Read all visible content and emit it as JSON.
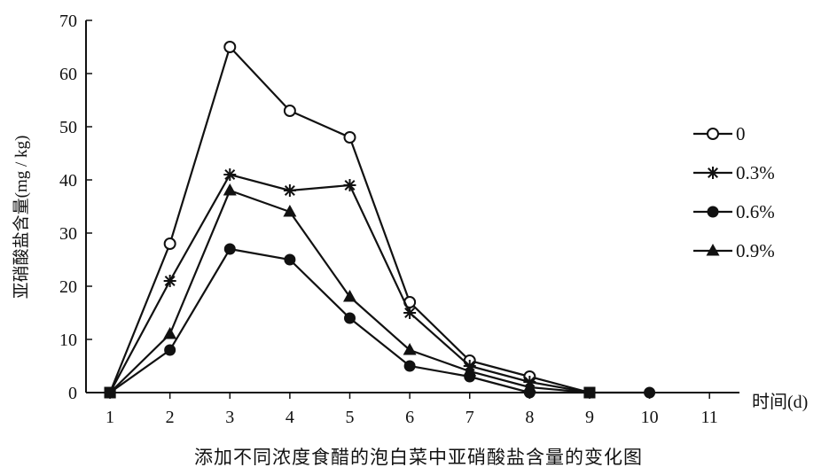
{
  "chart_data": {
    "type": "line",
    "title": "",
    "caption": "添加不同浓度食醋的泡白菜中亚硝酸盐含量的变化图",
    "xlabel": "时间(d)",
    "ylabel": "亚硝酸盐含量(mg / kg)",
    "x_ticks": [
      1,
      2,
      3,
      4,
      5,
      6,
      7,
      8,
      9,
      10,
      11
    ],
    "y_ticks": [
      0,
      10,
      20,
      30,
      40,
      50,
      60,
      70
    ],
    "xlim": [
      0.6,
      11.5
    ],
    "ylim": [
      0,
      70
    ],
    "grid": false,
    "legend_position": "right",
    "series": [
      {
        "name": "0",
        "marker": "open-circle",
        "x": [
          1,
          2,
          3,
          4,
          5,
          6,
          7,
          8,
          9
        ],
        "values": [
          0,
          28,
          65,
          53,
          48,
          17,
          6,
          3,
          0
        ]
      },
      {
        "name": "0.3%",
        "marker": "star",
        "x": [
          1,
          2,
          3,
          4,
          5,
          6,
          7,
          8,
          9
        ],
        "values": [
          0,
          21,
          41,
          38,
          39,
          15,
          5,
          2,
          0
        ]
      },
      {
        "name": "0.6%",
        "marker": "filled-circle",
        "x": [
          1,
          2,
          3,
          4,
          5,
          6,
          7,
          8,
          9,
          10
        ],
        "values": [
          0,
          8,
          27,
          25,
          14,
          5,
          3,
          0,
          0,
          0
        ]
      },
      {
        "name": "0.9%",
        "marker": "filled-triangle",
        "x": [
          1,
          2,
          3,
          4,
          5,
          6,
          7,
          8,
          9
        ],
        "values": [
          0,
          11,
          38,
          34,
          18,
          8,
          4,
          1,
          0
        ]
      }
    ],
    "start_marker": "filled-square",
    "colors": {
      "line": "#111111",
      "background": "#ffffff"
    }
  }
}
